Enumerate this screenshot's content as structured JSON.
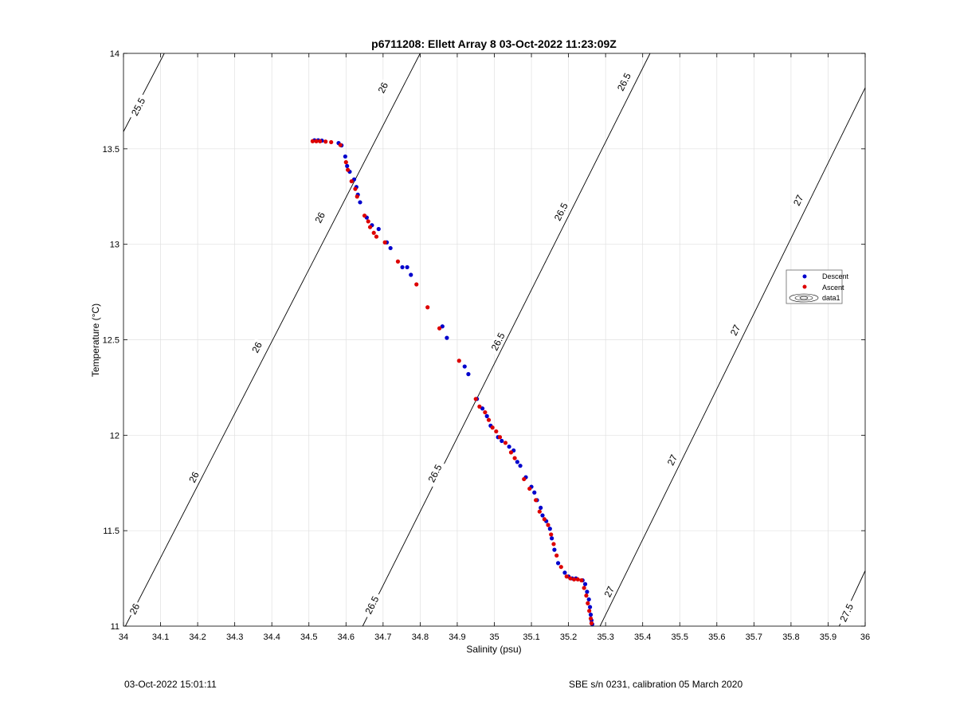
{
  "chart_data": {
    "type": "scatter",
    "title": "p6711208: Ellett Array 8 03-Oct-2022 11:23:09Z",
    "xlabel": "Salinity (psu)",
    "ylabel": "Temperature (°C)",
    "xlim": [
      34,
      36
    ],
    "ylim": [
      11,
      14
    ],
    "xticks": [
      "34",
      "34.1",
      "34.2",
      "34.3",
      "34.4",
      "34.5",
      "34.6",
      "34.7",
      "34.8",
      "34.9",
      "35",
      "35.1",
      "35.2",
      "35.3",
      "35.4",
      "35.5",
      "35.6",
      "35.7",
      "35.8",
      "35.9",
      "36"
    ],
    "yticks": [
      "11",
      "11.5",
      "12",
      "12.5",
      "13",
      "13.5",
      "14"
    ],
    "grid": true,
    "legend_placement": "right",
    "legend": [
      "Descent",
      "Ascent",
      "data1"
    ],
    "colors": {
      "descent": "#0000cc",
      "ascent": "#dd0000",
      "contour": "#000000",
      "grid": "#e0e0e0"
    },
    "series": [
      {
        "name": "Descent",
        "points": [
          [
            34.515,
            13.545
          ],
          [
            34.525,
            13.545
          ],
          [
            34.535,
            13.543
          ],
          [
            34.58,
            13.53
          ],
          [
            34.588,
            13.518
          ],
          [
            34.598,
            13.46
          ],
          [
            34.603,
            13.41
          ],
          [
            34.61,
            13.38
          ],
          [
            34.622,
            13.34
          ],
          [
            34.628,
            13.3
          ],
          [
            34.632,
            13.26
          ],
          [
            34.638,
            13.22
          ],
          [
            34.656,
            13.14
          ],
          [
            34.67,
            13.1
          ],
          [
            34.688,
            13.08
          ],
          [
            34.71,
            13.01
          ],
          [
            34.72,
            12.98
          ],
          [
            34.752,
            12.88
          ],
          [
            34.765,
            12.88
          ],
          [
            34.775,
            12.84
          ],
          [
            34.86,
            12.57
          ],
          [
            34.872,
            12.51
          ],
          [
            34.92,
            12.36
          ],
          [
            34.93,
            12.32
          ],
          [
            34.953,
            12.19
          ],
          [
            34.968,
            12.14
          ],
          [
            34.98,
            12.1
          ],
          [
            34.99,
            12.05
          ],
          [
            35.01,
            11.99
          ],
          [
            35.02,
            11.97
          ],
          [
            35.04,
            11.94
          ],
          [
            35.052,
            11.92
          ],
          [
            35.062,
            11.86
          ],
          [
            35.07,
            11.84
          ],
          [
            35.085,
            11.78
          ],
          [
            35.1,
            11.73
          ],
          [
            35.108,
            11.7
          ],
          [
            35.115,
            11.66
          ],
          [
            35.125,
            11.62
          ],
          [
            35.13,
            11.58
          ],
          [
            35.14,
            11.55
          ],
          [
            35.15,
            11.51
          ],
          [
            35.155,
            11.46
          ],
          [
            35.162,
            11.4
          ],
          [
            35.172,
            11.33
          ],
          [
            35.19,
            11.28
          ],
          [
            35.2,
            11.26
          ],
          [
            35.21,
            11.25
          ],
          [
            35.22,
            11.25
          ],
          [
            35.238,
            11.24
          ],
          [
            35.245,
            11.22
          ],
          [
            35.25,
            11.18
          ],
          [
            35.255,
            11.14
          ],
          [
            35.258,
            11.1
          ],
          [
            35.26,
            11.06
          ],
          [
            35.262,
            11.03
          ],
          [
            35.264,
            11.01
          ]
        ]
      },
      {
        "name": "Ascent",
        "points": [
          [
            34.51,
            13.54
          ],
          [
            34.52,
            13.54
          ],
          [
            34.53,
            13.54
          ],
          [
            34.545,
            13.538
          ],
          [
            34.56,
            13.535
          ],
          [
            34.585,
            13.52
          ],
          [
            34.6,
            13.43
          ],
          [
            34.605,
            13.39
          ],
          [
            34.615,
            13.33
          ],
          [
            34.625,
            13.29
          ],
          [
            34.63,
            13.25
          ],
          [
            34.65,
            13.15
          ],
          [
            34.66,
            13.12
          ],
          [
            34.665,
            13.09
          ],
          [
            34.675,
            13.06
          ],
          [
            34.682,
            13.04
          ],
          [
            34.705,
            13.01
          ],
          [
            34.74,
            12.91
          ],
          [
            34.79,
            12.79
          ],
          [
            34.82,
            12.67
          ],
          [
            34.852,
            12.56
          ],
          [
            34.905,
            12.39
          ],
          [
            34.95,
            12.19
          ],
          [
            34.96,
            12.15
          ],
          [
            34.975,
            12.12
          ],
          [
            34.985,
            12.08
          ],
          [
            34.995,
            12.04
          ],
          [
            35.005,
            12.02
          ],
          [
            35.015,
            11.99
          ],
          [
            35.03,
            11.96
          ],
          [
            35.045,
            11.91
          ],
          [
            35.055,
            11.88
          ],
          [
            35.08,
            11.77
          ],
          [
            35.095,
            11.72
          ],
          [
            35.112,
            11.66
          ],
          [
            35.122,
            11.6
          ],
          [
            35.135,
            11.56
          ],
          [
            35.145,
            11.53
          ],
          [
            35.153,
            11.48
          ],
          [
            35.16,
            11.43
          ],
          [
            35.168,
            11.37
          ],
          [
            35.18,
            11.31
          ],
          [
            35.195,
            11.26
          ],
          [
            35.205,
            11.25
          ],
          [
            35.215,
            11.245
          ],
          [
            35.225,
            11.245
          ],
          [
            35.235,
            11.24
          ],
          [
            35.242,
            11.2
          ],
          [
            35.248,
            11.16
          ],
          [
            35.252,
            11.12
          ],
          [
            35.256,
            11.08
          ],
          [
            35.26,
            11.04
          ],
          [
            35.262,
            11.015
          ]
        ]
      }
    ],
    "contours": [
      {
        "value": 25.5,
        "line": [
          [
            34,
            13.59
          ],
          [
            34.11,
            14
          ]
        ],
        "labels": [
          {
            "text": "25.5",
            "at": [
              34.04,
              13.72
            ]
          }
        ]
      },
      {
        "value": 26,
        "line": [
          [
            34.005,
            11
          ],
          [
            34.8,
            14
          ]
        ],
        "labels": [
          {
            "text": "26",
            "at": [
              34.03,
              11.09
            ]
          },
          {
            "text": "26",
            "at": [
              34.19,
              11.78
            ]
          },
          {
            "text": "26",
            "at": [
              34.36,
              12.46
            ]
          },
          {
            "text": "26",
            "at": [
              34.53,
              13.14
            ]
          },
          {
            "text": "26",
            "at": [
              34.7,
              13.82
            ]
          }
        ]
      },
      {
        "value": 26.5,
        "line": [
          [
            34.645,
            11
          ],
          [
            35.42,
            14
          ]
        ],
        "labels": [
          {
            "text": "26.5",
            "at": [
              34.67,
              11.11
            ]
          },
          {
            "text": "26.5",
            "at": [
              34.84,
              11.8
            ]
          },
          {
            "text": "26.5",
            "at": [
              35.01,
              12.49
            ]
          },
          {
            "text": "26.5",
            "at": [
              35.18,
              13.17
            ]
          },
          {
            "text": "26.5",
            "at": [
              35.35,
              13.85
            ]
          }
        ]
      },
      {
        "value": 27,
        "line": [
          [
            35.285,
            11
          ],
          [
            36,
            13.82
          ]
        ],
        "labels": [
          {
            "text": "27",
            "at": [
              35.31,
              11.18
            ]
          },
          {
            "text": "27",
            "at": [
              35.48,
              11.87
            ]
          },
          {
            "text": "27",
            "at": [
              35.65,
              12.55
            ]
          },
          {
            "text": "27",
            "at": [
              35.82,
              13.23
            ]
          }
        ]
      },
      {
        "value": 27.5,
        "line": [
          [
            35.93,
            11
          ],
          [
            36,
            11.29
          ]
        ],
        "labels": [
          {
            "text": "27.5",
            "at": [
              35.95,
              11.07
            ]
          }
        ]
      }
    ]
  },
  "footer": {
    "left": "03-Oct-2022 15:01:11",
    "right": "SBE s/n 0231, calibration 05 March 2020"
  }
}
